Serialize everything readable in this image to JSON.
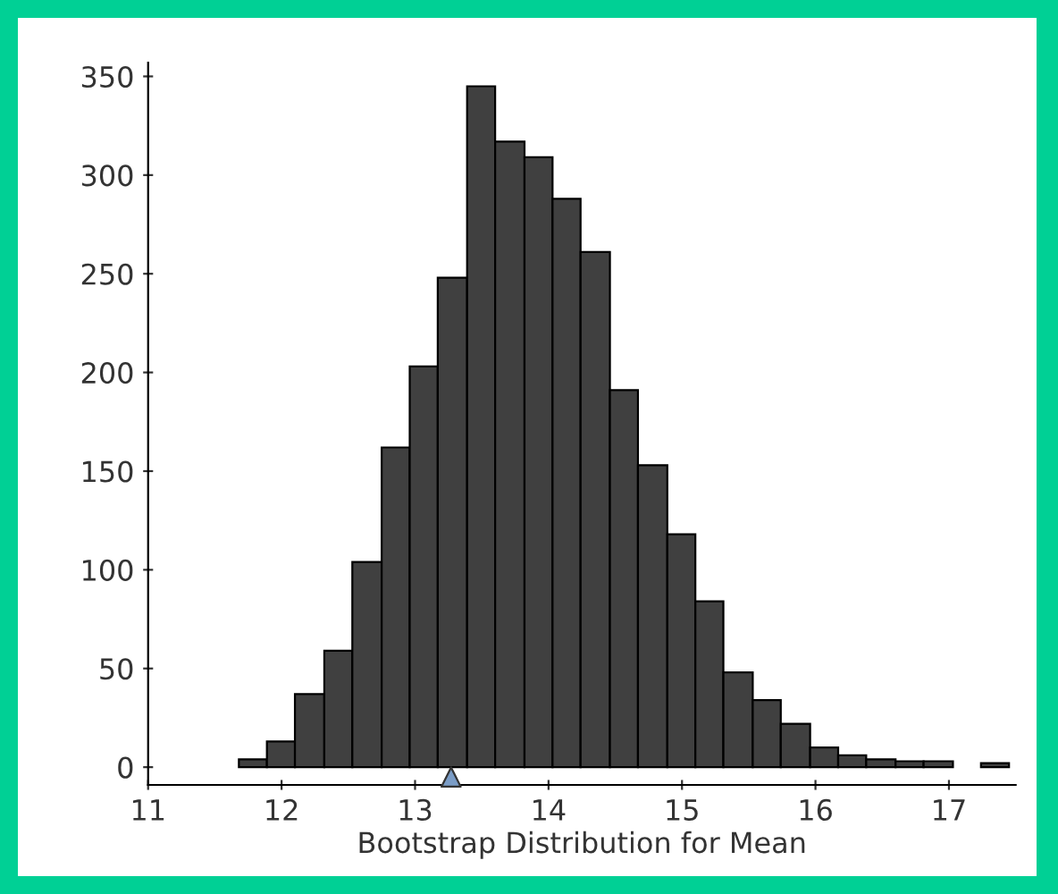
{
  "chart_data": {
    "type": "histogram",
    "xlabel": "Bootstrap Distribution for Mean",
    "bins": [
      11.68,
      11.89,
      12.1,
      12.32,
      12.53,
      12.75,
      12.96,
      13.17,
      13.39,
      13.6,
      13.82,
      14.03,
      14.24,
      14.46,
      14.67,
      14.89,
      15.1,
      15.31,
      15.53,
      15.74,
      15.96,
      16.17,
      16.38,
      16.6,
      16.81,
      17.03,
      17.24,
      17.45
    ],
    "values": [
      4,
      13,
      37,
      59,
      104,
      162,
      203,
      248,
      345,
      317,
      309,
      288,
      261,
      191,
      153,
      118,
      84,
      48,
      34,
      22,
      10,
      6,
      4,
      3,
      3,
      0,
      2
    ],
    "color": "#404040",
    "series": [
      {
        "type": "scatter",
        "x": [
          13.27
        ],
        "values": [
          -5
        ],
        "color": "#7a9cc6",
        "marker": "triangle"
      }
    ],
    "xlim": [
      11,
      17.5
    ],
    "ylim": [
      -9,
      357
    ],
    "xticks": [
      11,
      12,
      13,
      14,
      15,
      16,
      17
    ],
    "yticks": [
      0,
      50,
      100,
      150,
      200,
      250,
      300,
      350
    ],
    "grid": false,
    "legend": false
  }
}
